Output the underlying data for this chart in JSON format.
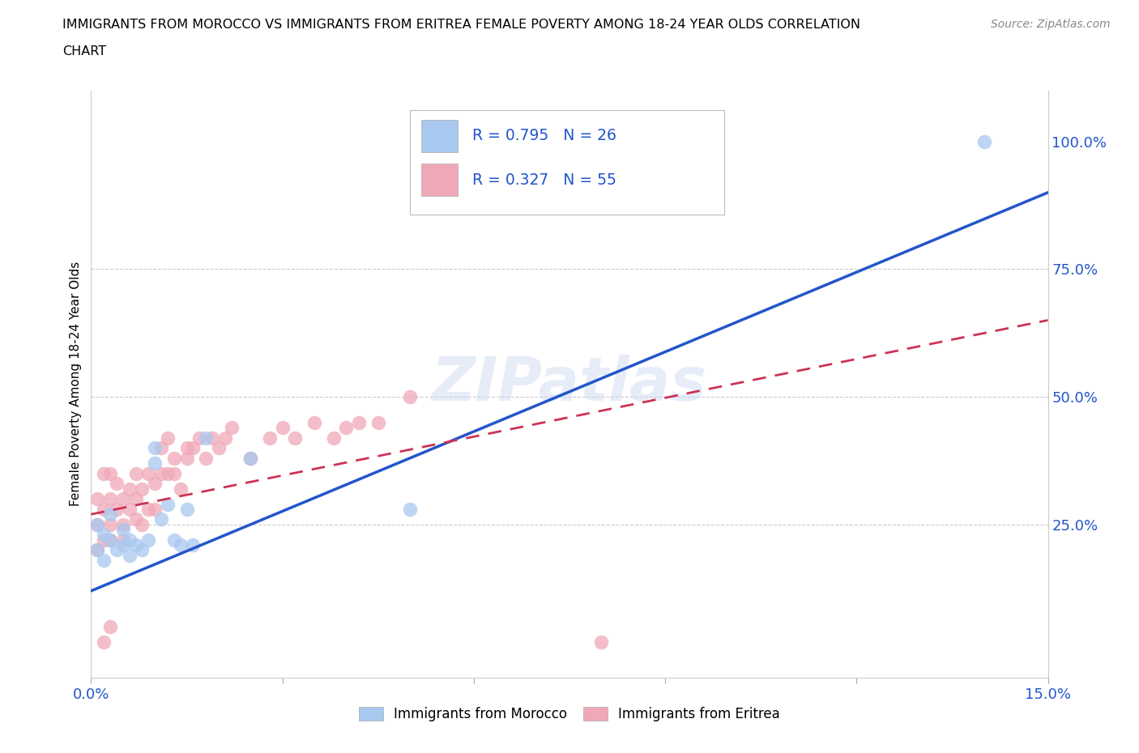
{
  "title_line1": "IMMIGRANTS FROM MOROCCO VS IMMIGRANTS FROM ERITREA FEMALE POVERTY AMONG 18-24 YEAR OLDS CORRELATION",
  "title_line2": "CHART",
  "source": "Source: ZipAtlas.com",
  "ylabel": "Female Poverty Among 18-24 Year Olds",
  "xlim": [
    0.0,
    0.15
  ],
  "ylim": [
    -0.05,
    1.1
  ],
  "watermark": "ZIPatlas",
  "color_morocco": "#a8c8f0",
  "color_eritrea": "#f0a8b8",
  "color_morocco_line": "#2255cc",
  "color_eritrea_line": "#cc3355",
  "color_legend_text": "#2255cc",
  "color_axis_text": "#2255cc",
  "morocco_x": [
    0.001,
    0.001,
    0.002,
    0.002,
    0.003,
    0.003,
    0.004,
    0.005,
    0.005,
    0.006,
    0.006,
    0.007,
    0.008,
    0.009,
    0.01,
    0.01,
    0.011,
    0.012,
    0.013,
    0.014,
    0.015,
    0.016,
    0.018,
    0.025,
    0.05,
    0.14
  ],
  "morocco_y": [
    0.2,
    0.25,
    0.18,
    0.23,
    0.22,
    0.27,
    0.2,
    0.21,
    0.24,
    0.19,
    0.22,
    0.21,
    0.2,
    0.22,
    0.4,
    0.37,
    0.26,
    0.29,
    0.22,
    0.21,
    0.28,
    0.21,
    0.42,
    0.38,
    0.28,
    1.0
  ],
  "eritrea_x": [
    0.001,
    0.001,
    0.001,
    0.002,
    0.002,
    0.002,
    0.003,
    0.003,
    0.003,
    0.003,
    0.004,
    0.004,
    0.005,
    0.005,
    0.005,
    0.006,
    0.006,
    0.007,
    0.007,
    0.007,
    0.008,
    0.008,
    0.009,
    0.009,
    0.01,
    0.01,
    0.011,
    0.011,
    0.012,
    0.012,
    0.013,
    0.013,
    0.014,
    0.015,
    0.015,
    0.016,
    0.017,
    0.018,
    0.019,
    0.02,
    0.021,
    0.022,
    0.025,
    0.028,
    0.03,
    0.032,
    0.035,
    0.038,
    0.04,
    0.042,
    0.045,
    0.05,
    0.002,
    0.003,
    0.08
  ],
  "eritrea_y": [
    0.2,
    0.25,
    0.3,
    0.22,
    0.28,
    0.35,
    0.25,
    0.3,
    0.35,
    0.22,
    0.28,
    0.33,
    0.25,
    0.3,
    0.22,
    0.28,
    0.32,
    0.26,
    0.3,
    0.35,
    0.25,
    0.32,
    0.28,
    0.35,
    0.28,
    0.33,
    0.35,
    0.4,
    0.35,
    0.42,
    0.35,
    0.38,
    0.32,
    0.38,
    0.4,
    0.4,
    0.42,
    0.38,
    0.42,
    0.4,
    0.42,
    0.44,
    0.38,
    0.42,
    0.44,
    0.42,
    0.45,
    0.42,
    0.44,
    0.45,
    0.45,
    0.5,
    0.02,
    0.05,
    0.02
  ],
  "morocco_line_x": [
    0.0,
    0.15
  ],
  "morocco_line_y": [
    0.12,
    0.9
  ],
  "eritrea_line_x": [
    0.0,
    0.15
  ],
  "eritrea_line_y": [
    0.27,
    0.65
  ],
  "legend_morocco_text": "R = 0.795   N = 26",
  "legend_eritrea_text": "R = 0.327   N = 55",
  "bottom_legend_morocco": "Immigrants from Morocco",
  "bottom_legend_eritrea": "Immigrants from Eritrea"
}
